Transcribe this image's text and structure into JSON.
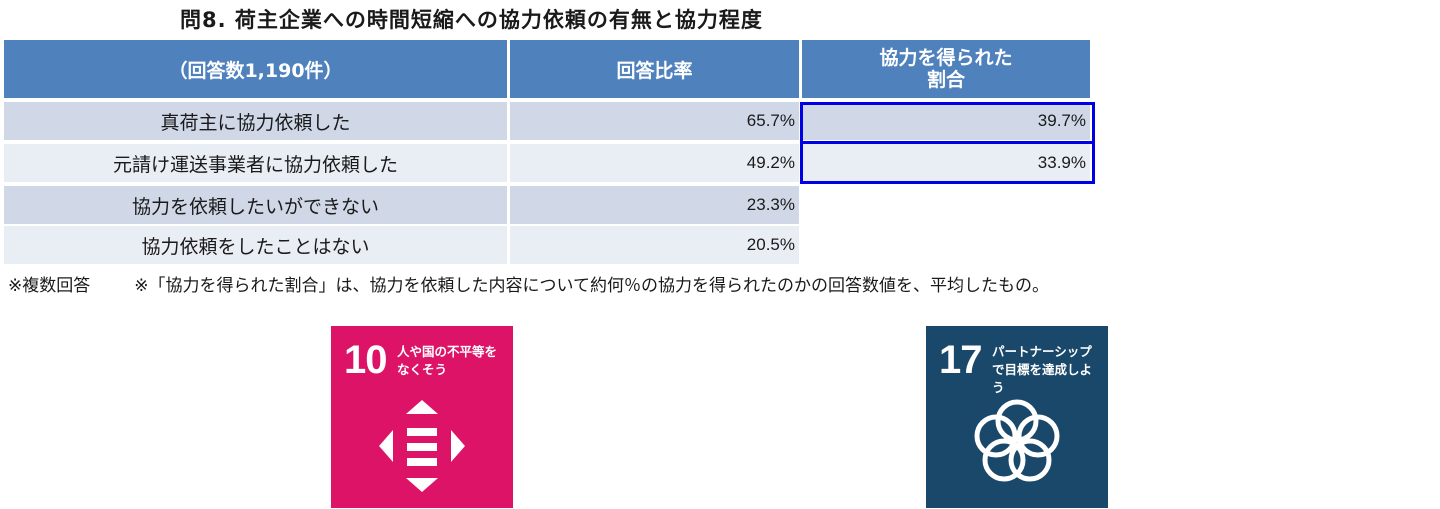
{
  "title": "問8. 荷主企業への時間短縮への協力依頼の有無と協力程度",
  "table": {
    "header": {
      "col1": "（回答数1,190件）",
      "col2": "回答比率",
      "col3_line1": "協力を得られた",
      "col3_line2": "割合"
    },
    "rows": [
      {
        "label": "真荷主に協力依頼した",
        "ratio": "65.7%",
        "coop": "39.7%"
      },
      {
        "label": "元請け運送事業者に協力依頼した",
        "ratio": "49.2%",
        "coop": "33.9%"
      },
      {
        "label": "協力を依頼したいができない",
        "ratio": "23.3%",
        "coop": ""
      },
      {
        "label": "協力依頼をしたことはない",
        "ratio": "20.5%",
        "coop": ""
      }
    ],
    "highlight_color": "#0000e6",
    "header_color": "#4f81bd"
  },
  "notes": {
    "note1": "※複数回答",
    "note2": "※「協力を得られた割合」は、協力を依頼した内容について約何％の協力を得られたのかの回答数値を、平均したもの。"
  },
  "sdg10": {
    "number": "10",
    "text": "人や国の不平等をなくそう",
    "color": "#dd1367",
    "icon": "reduced-inequalities-icon"
  },
  "sdg17": {
    "number": "17",
    "text": "パートナーシップで目標を達成しよう",
    "color": "#19486a",
    "icon": "partnership-rings-icon"
  }
}
